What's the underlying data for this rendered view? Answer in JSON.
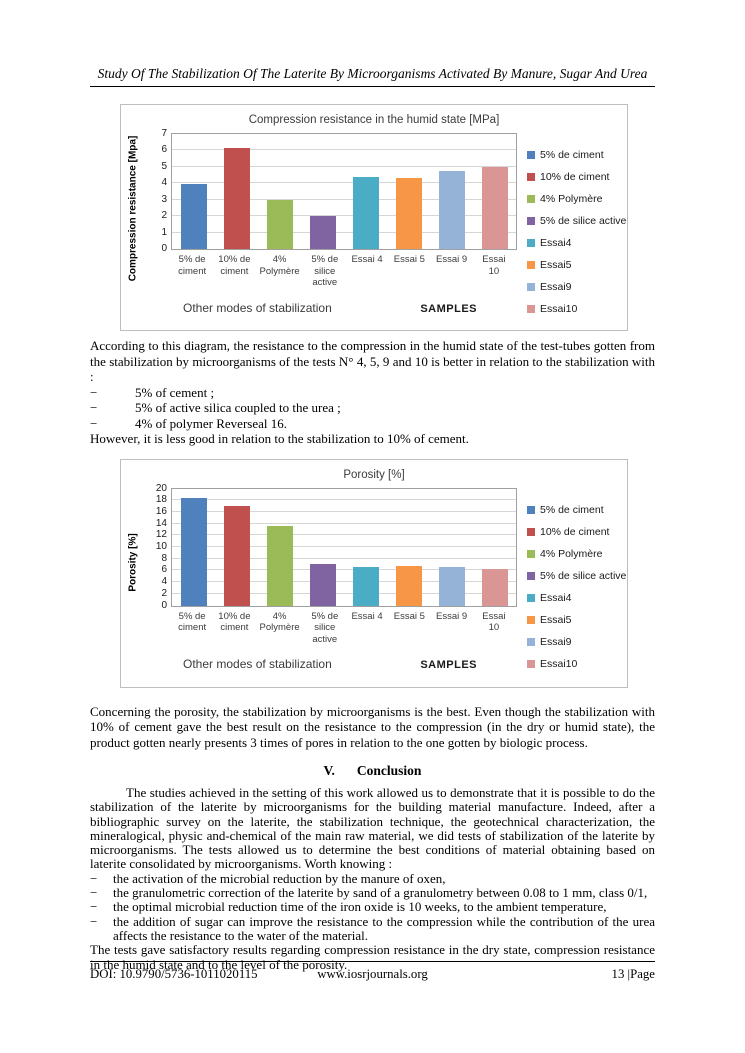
{
  "page": {
    "header_title": "Study Of The Stabilization Of The Laterite By Microorganisms Activated By Manure, Sugar And Urea",
    "footer": {
      "doi": "DOI: 10.9790/5736-1011020115",
      "site": "www.iosrjournals.org",
      "page": "13 |Page"
    }
  },
  "sections": {
    "dash": "−",
    "para1_intro": "According to this diagram, the resistance to the compression in the humid state of the test-tubes gotten from the stabilization by microorganisms of the tests N° 4, 5, 9 and 10 is better in relation to the stabilization with :",
    "para1_items": [
      "5% of cement ;",
      "5% of active silica coupled to the urea ;",
      "4% of polymer Reverseal 16."
    ],
    "para1_close": "However, it is less good in relation to the stabilization to 10% of cement.",
    "para2": "Concerning the porosity, the stabilization by microorganisms is the best. Even though the stabilization with 10% of cement gave the best result on the resistance to the compression (in the dry or humid state), the product gotten nearly presents 3 times of pores in relation to the one gotten by biologic process.",
    "conclusion_number": "V.",
    "conclusion_title": "Conclusion",
    "conclusion_para": "The studies achieved in the setting of this work allowed us to demonstrate that it is possible to do the stabilization of the laterite by microorganisms for the building material manufacture. Indeed, after a bibliographic survey on the laterite, the stabilization technique, the geotechnical characterization, the mineralogical, physic and-chemical of the main raw material, we did tests of stabilization of the laterite by microorganisms. The tests allowed us to determine the best conditions of material obtaining based on laterite consolidated by microorganisms. Worth knowing :",
    "conclusion_items": [
      "the activation of the microbial reduction by the manure of oxen,",
      "the granulometric correction of the laterite by sand of a granulometry between 0.08 to 1 mm, class 0/1,",
      "the optimal microbial reduction time of the iron oxide is 10 weeks, to the ambient temperature,",
      "the addition of sugar can improve the resistance to the compression while the contribution of the urea affects the resistance to the water of the material."
    ],
    "closing_para": "The tests gave satisfactory results regarding compression resistance in the dry state, compression resistance in the humid state and to the level of the porosity."
  },
  "chart_data": [
    {
      "type": "bar",
      "title": "Compression resistance in the humid state [MPa]",
      "ylabel": "Compression resistance [Mpa]",
      "xlabel_left": "Other modes of stabilization",
      "xlabel_right": "SAMPLES",
      "categories": [
        "5% de ciment",
        "10% de ciment",
        "4% Polymère",
        "5% de silice active",
        "Essai 4",
        "Essai 5",
        "Essai 9",
        "Essai 10"
      ],
      "values": [
        3.95,
        6.15,
        3.0,
        2.0,
        4.4,
        4.35,
        4.75,
        5.0
      ],
      "colors": [
        "#4F81BD",
        "#C0504D",
        "#9BBB59",
        "#8064A2",
        "#4BACC6",
        "#F79646",
        "#95B3D7",
        "#D99694"
      ],
      "legend": [
        "5% de ciment",
        "10% de ciment",
        "4% Polymère",
        "5% de silice active",
        "Essai4",
        "Essai5",
        "Essai9",
        "Essai10"
      ],
      "ylim": [
        0,
        7
      ],
      "ytick_step": 1,
      "grid": true,
      "legend_position": "right"
    },
    {
      "type": "bar",
      "title": "Porosity [%]",
      "ylabel": "Porosity [%]",
      "xlabel_left": "Other modes of stabilization",
      "xlabel_right": "SAMPLES",
      "categories": [
        "5% de ciment",
        "10% de ciment",
        "4% Polymère",
        "5% de silice active",
        "Essai 4",
        "Essai 5",
        "Essai 9",
        "Essai 10"
      ],
      "values": [
        18.4,
        17.0,
        13.6,
        7.1,
        6.6,
        6.8,
        6.6,
        6.2
      ],
      "colors": [
        "#4F81BD",
        "#C0504D",
        "#9BBB59",
        "#8064A2",
        "#4BACC6",
        "#F79646",
        "#95B3D7",
        "#D99694"
      ],
      "legend": [
        "5% de ciment",
        "10% de ciment",
        "4% Polymère",
        "5% de silice active",
        "Essai4",
        "Essai5",
        "Essai9",
        "Essai10"
      ],
      "ylim": [
        0,
        20
      ],
      "ytick_step": 2,
      "grid": true,
      "legend_position": "right"
    }
  ]
}
